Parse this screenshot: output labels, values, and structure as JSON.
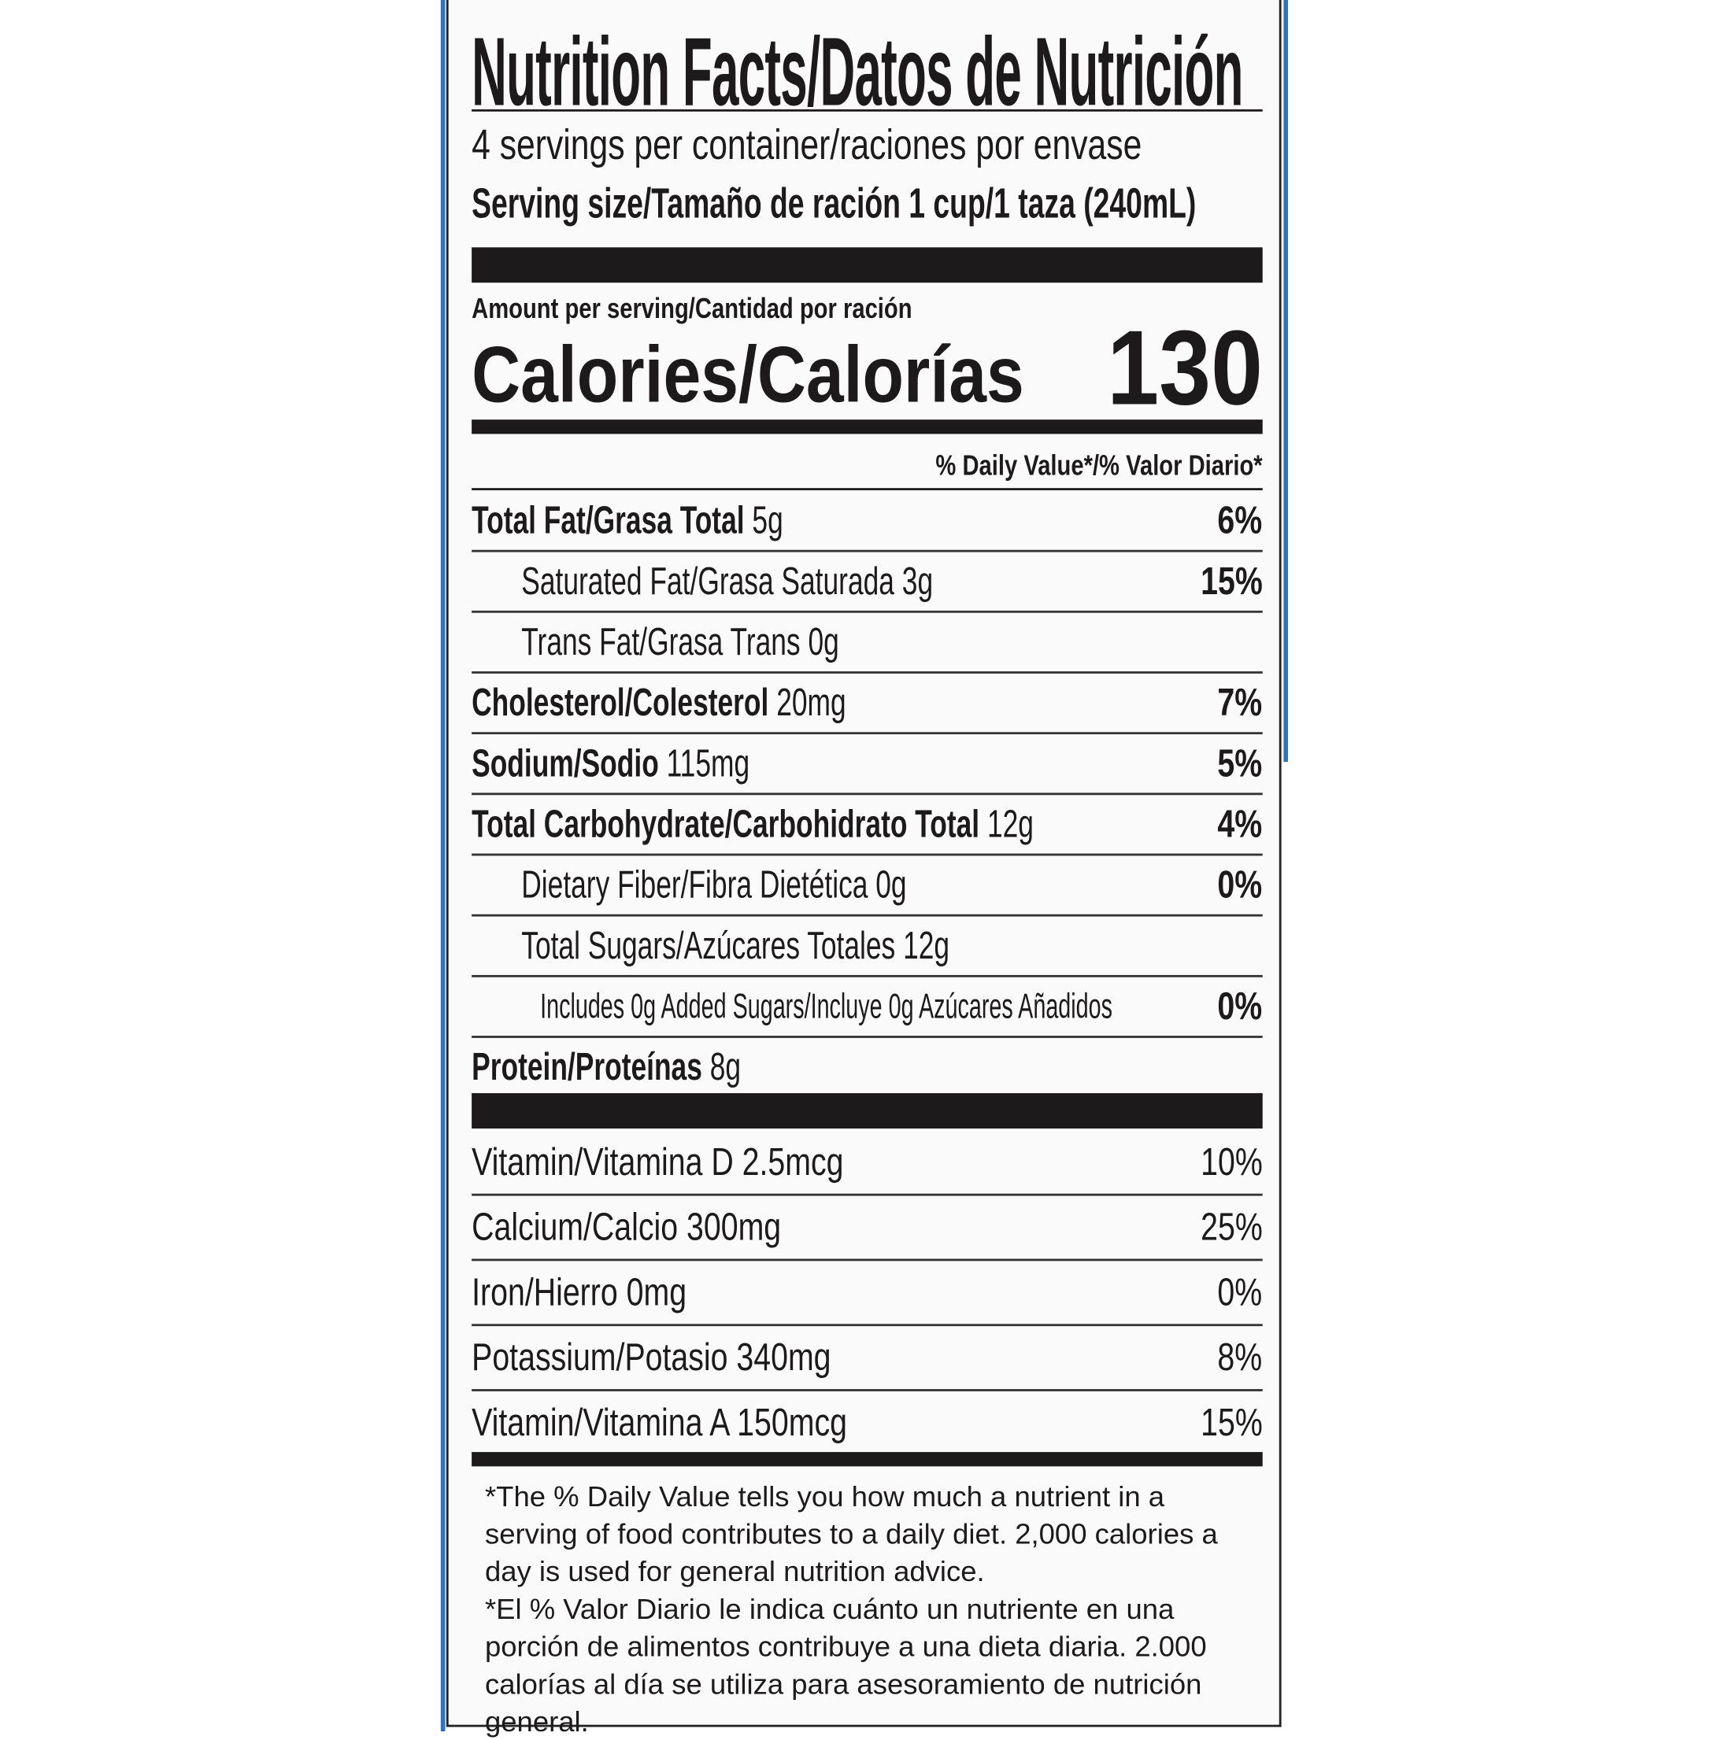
{
  "colors": {
    "text": "#1c1a1b",
    "border_accent": "#2f72c4",
    "background": "#fbfafb"
  },
  "title": "Nutrition Facts/Datos de Nutrición",
  "servings_per_container": "4 servings per container/raciones por envase",
  "serving_size": "Serving size/Tamaño de ración 1 cup/1 taza (240mL)",
  "amount_per_serving": "Amount per serving/Cantidad por ración",
  "calories_label": "Calories/Calorías",
  "calories_value": "130",
  "daily_value_header": "% Daily Value*/% Valor Diario*",
  "nutrients": [
    {
      "name": "Total Fat/Grasa Total",
      "amount": "5g",
      "dv": "6%",
      "bold": true,
      "indent": 0
    },
    {
      "name": "Saturated Fat/Grasa Saturada",
      "amount": "3g",
      "dv": "15%",
      "bold": false,
      "indent": 1
    },
    {
      "name": "Trans Fat/Grasa Trans",
      "amount": "0g",
      "dv": "",
      "bold": false,
      "indent": 1
    },
    {
      "name": "Cholesterol/Colesterol",
      "amount": "20mg",
      "dv": "7%",
      "bold": true,
      "indent": 0
    },
    {
      "name": "Sodium/Sodio",
      "amount": "115mg",
      "dv": "5%",
      "bold": true,
      "indent": 0
    },
    {
      "name": "Total Carbohydrate/Carbohidrato Total",
      "amount": "12g",
      "dv": "4%",
      "bold": true,
      "indent": 0
    },
    {
      "name": "Dietary Fiber/Fibra Dietética",
      "amount": "0g",
      "dv": "0%",
      "bold": false,
      "indent": 1
    },
    {
      "name": "Total Sugars/Azúcares Totales",
      "amount": "12g",
      "dv": "",
      "bold": false,
      "indent": 1
    },
    {
      "name": "Includes 0g Added Sugars/Incluye 0g Azúcares Añadidos",
      "amount": "",
      "dv": "0%",
      "bold": false,
      "indent": 2
    },
    {
      "name": "Protein/Proteínas",
      "amount": "8g",
      "dv": "",
      "bold": true,
      "indent": 0
    }
  ],
  "vitamins": [
    {
      "name": "Vitamin/Vitamina D 2.5mcg",
      "dv": "10%"
    },
    {
      "name": "Calcium/Calcio 300mg",
      "dv": "25%"
    },
    {
      "name": "Iron/Hierro 0mg",
      "dv": "0%"
    },
    {
      "name": "Potassium/Potasio 340mg",
      "dv": "8%"
    },
    {
      "name": "Vitamin/Vitamina A 150mcg",
      "dv": "15%"
    }
  ],
  "footnotes": [
    "*The % Daily Value tells you how much a nutrient in a serving of food contributes to a daily diet. 2,000 calories a day is used for general nutrition advice.",
    "*El % Valor Diario le indica cuánto un nutriente en una porción de alimentos contribuye a una dieta diaria. 2.000 calorías al día se utiliza para asesoramiento de nutrición general."
  ]
}
